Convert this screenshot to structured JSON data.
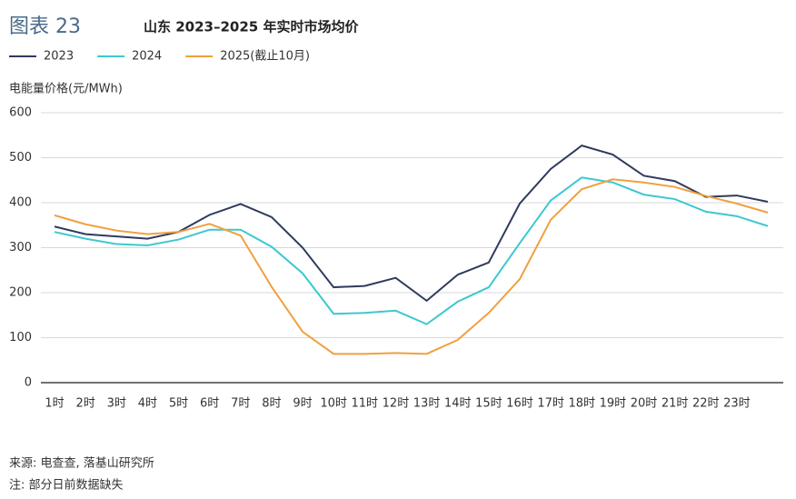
{
  "chart_data": {
    "type": "line",
    "figure_label": "图表 23",
    "title": "山东 2023–2025 年实时市场均价",
    "y_label": "电能量价格(元/MWh)",
    "categories": [
      "1时",
      "2时",
      "3时",
      "4时",
      "5时",
      "6时",
      "7时",
      "8时",
      "9时",
      "10时",
      "11时",
      "12时",
      "13时",
      "14时",
      "15时",
      "16时",
      "17时",
      "18时",
      "19时",
      "20时",
      "21时",
      "22时",
      "23时",
      null
    ],
    "series": [
      {
        "name": "2023",
        "color": "#2e3b5e",
        "values": [
          347,
          330,
          325,
          320,
          335,
          373,
          397,
          368,
          300,
          212,
          215,
          233,
          182,
          240,
          267,
          398,
          475,
          527,
          507,
          460,
          448,
          413,
          416,
          402
        ]
      },
      {
        "name": "2024",
        "color": "#3cc8d0",
        "values": [
          335,
          320,
          308,
          305,
          318,
          340,
          340,
          302,
          243,
          153,
          155,
          160,
          130,
          180,
          212,
          310,
          405,
          456,
          445,
          418,
          408,
          380,
          370,
          348
        ]
      },
      {
        "name": "2025(截止10月)",
        "color": "#f0a040",
        "values": [
          372,
          352,
          338,
          330,
          335,
          353,
          327,
          213,
          113,
          64,
          64,
          66,
          64,
          95,
          155,
          230,
          362,
          430,
          452,
          445,
          435,
          415,
          398,
          378
        ]
      }
    ],
    "ylim": [
      0,
      600
    ],
    "yticks": [
      0,
      100,
      200,
      300,
      400,
      500,
      600
    ],
    "grid": true,
    "notes": [
      "来源: 电查查, 落基山研究所",
      "注: 部分日前数据缺失"
    ]
  }
}
